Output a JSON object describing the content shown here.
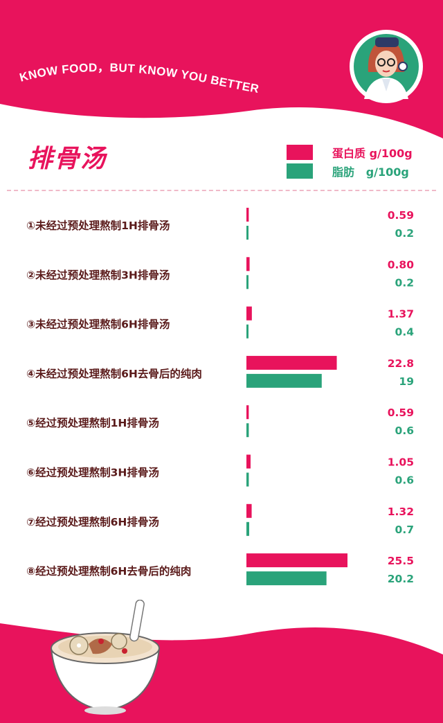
{
  "header": {
    "tagline": "KNOW FOOD，BUT KNOW YOU BETTER"
  },
  "colors": {
    "brand": "#e8135c",
    "protein": "#e8135c",
    "fat": "#2aa37a",
    "label_text": "#5a1a1a"
  },
  "chart_data": {
    "type": "bar",
    "orientation": "horizontal",
    "title": "排骨汤",
    "categories": [
      "①未经过预处理熬制1H排骨汤",
      "②未经过预处理熬制3H排骨汤",
      "③未经过预处理熬制6H排骨汤",
      "④未经过预处理熬制6H去骨后的纯肉",
      "⑤经过预处理熬制1H排骨汤",
      "⑥经过预处理熬制3H排骨汤",
      "⑦经过预处理熬制6H排骨汤",
      "⑧经过预处理熬制6H去骨后的纯肉"
    ],
    "series": [
      {
        "name": "蛋白质 g/100g",
        "color": "#e8135c",
        "values": [
          0.59,
          0.8,
          1.37,
          22.8,
          0.59,
          1.05,
          1.32,
          25.5
        ],
        "labels": [
          "0.59",
          "0.80",
          "1.37",
          "22.8",
          "0.59",
          "1.05",
          "1.32",
          "25.5"
        ]
      },
      {
        "name": "脂肪   g/100g",
        "color": "#2aa37a",
        "values": [
          0.2,
          0.2,
          0.4,
          19,
          0.6,
          0.6,
          0.7,
          20.2
        ],
        "labels": [
          "0.2",
          "0.2",
          "0.4",
          "19",
          "0.6",
          "0.6",
          "0.7",
          "20.2"
        ]
      }
    ],
    "legend_position": "top-right",
    "grid": false
  }
}
